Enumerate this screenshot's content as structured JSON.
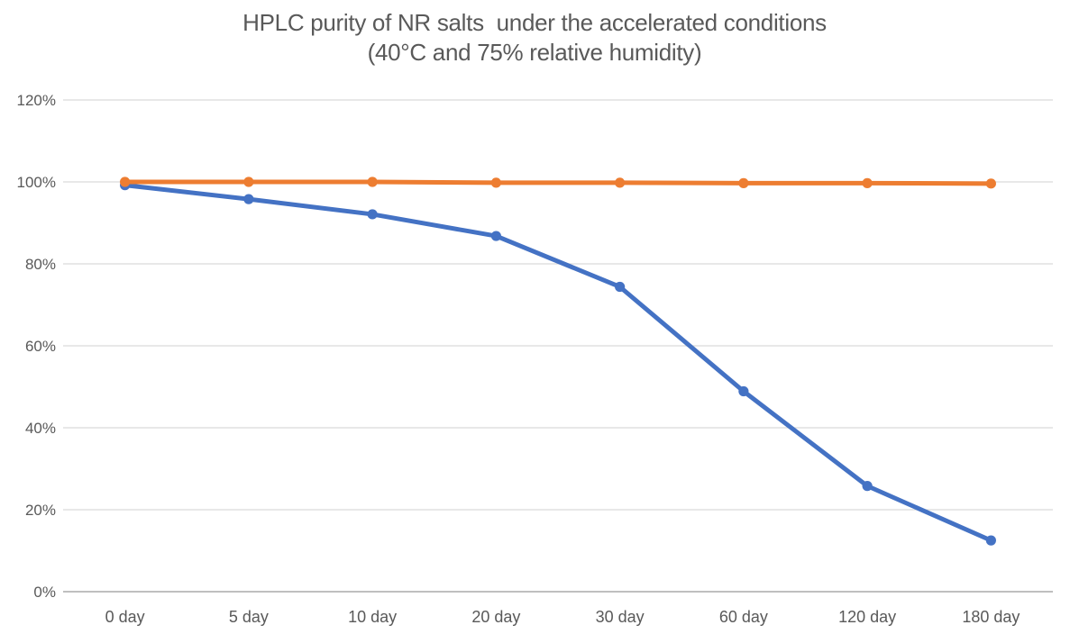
{
  "chart_data": {
    "type": "line",
    "title_line1": "HPLC purity of NR salts  under the accelerated conditions",
    "title_line2": "(40°C and 75% relative humidity)",
    "categories": [
      "0 day",
      "5 day",
      "10 day",
      "20 day",
      "30 day",
      "60 day",
      "120 day",
      "180 day"
    ],
    "series": [
      {
        "name": "blue-series",
        "color": "#4472C4",
        "values": [
          99.2,
          95.8,
          92.1,
          86.8,
          74.4,
          48.9,
          25.8,
          12.5
        ]
      },
      {
        "name": "orange-series",
        "color": "#ED7D31",
        "values": [
          100,
          100,
          100,
          99.8,
          99.8,
          99.7,
          99.7,
          99.6
        ]
      }
    ],
    "xlabel": "",
    "ylabel": "",
    "ylim": [
      0,
      120
    ],
    "y_ticks": [
      0,
      20,
      40,
      60,
      80,
      100,
      120
    ],
    "y_tick_labels": [
      "0%",
      "20%",
      "40%",
      "60%",
      "80%",
      "100%",
      "120%"
    ],
    "grid": true,
    "legend": "none",
    "colors": {
      "grid": "#D9D9D9",
      "axis": "#BFBFBF",
      "text": "#595959",
      "background": "#FFFFFF"
    }
  }
}
